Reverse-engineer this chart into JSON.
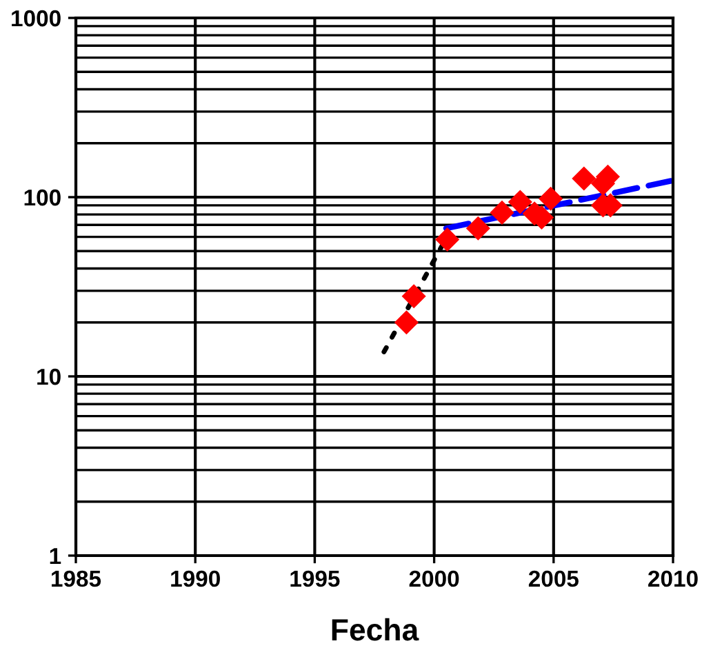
{
  "chart_data": {
    "type": "scatter",
    "xlabel": "Fecha",
    "log": "y",
    "grid": true,
    "legend": false,
    "xlim": [
      1985,
      2010
    ],
    "ylim": [
      1,
      1000
    ],
    "xticks": [
      1985,
      1990,
      1995,
      2000,
      2005,
      2010
    ],
    "yticks": [
      1,
      10,
      100,
      1000
    ],
    "series": [
      {
        "color": "#ff0000",
        "marker": "diamond",
        "x": [
          1998.84,
          1999.15,
          2000.55,
          2001.84,
          2002.84,
          2003.6,
          2004.2,
          2004.5,
          2004.88,
          2006.27,
          2007.27,
          2007.07,
          2007.07,
          2007.38
        ],
        "values": [
          20,
          28,
          58,
          67,
          82,
          94,
          81,
          77,
          98,
          127,
          130,
          119,
          90,
          90
        ]
      },
      {
        "type": "line",
        "color": "#000000",
        "line_style": "dotted",
        "marker": "none",
        "x": [
          1997.9,
          2000.4
        ],
        "values": [
          13.7,
          55.7
        ]
      },
      {
        "type": "line",
        "color": "#0000ff",
        "line_style": "dashed",
        "marker": "none",
        "x": [
          2000.5,
          2010
        ],
        "values": [
          67,
          124
        ]
      }
    ]
  }
}
